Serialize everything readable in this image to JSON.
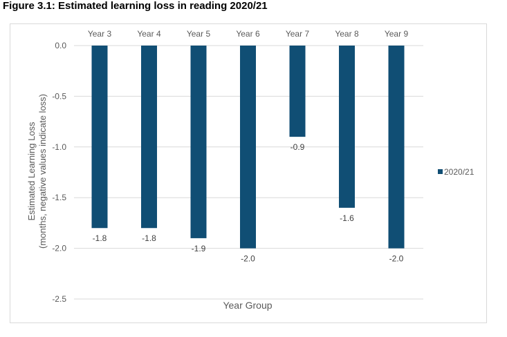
{
  "figure_title": "Figure 3.1: Estimated learning loss in reading 2020/21",
  "colors": {
    "bar": "#104e74",
    "grid": "#d9d9d9",
    "text": "#595959"
  },
  "chart_data": {
    "type": "bar",
    "title": "",
    "categories": [
      "Year 3",
      "Year 4",
      "Year 5",
      "Year 6",
      "Year 7",
      "Year 8",
      "Year 9"
    ],
    "series": [
      {
        "name": "2020/21",
        "values": [
          -1.8,
          -1.8,
          -1.9,
          -2.0,
          -0.9,
          -1.6,
          -2.0
        ]
      }
    ],
    "data_labels": [
      "-1.8",
      "-1.8",
      "-1.9",
      "-2.0",
      "-0.9",
      "-1.6",
      "-2.0"
    ],
    "xlabel": "Year Group",
    "ylabel_lines": [
      "Estimated Learning Loss",
      "(months, negative values indicate loss)"
    ],
    "ylim": [
      -2.5,
      0
    ],
    "yticks": [
      "0.0",
      "-0.5",
      "-1.0",
      "-1.5",
      "-2.0",
      "-2.5"
    ],
    "ytick_values": [
      0,
      -0.5,
      -1.0,
      -1.5,
      -2.0,
      -2.5
    ],
    "x_axis_position": "top",
    "grid": true,
    "legend": "right"
  }
}
